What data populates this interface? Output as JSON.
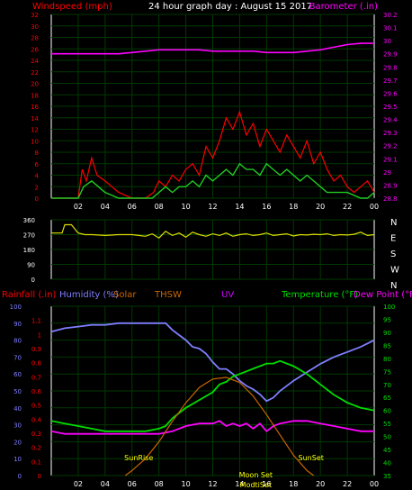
{
  "header": {
    "left_label": "Windspeed (mph)",
    "title": "24 hour graph day : August 15 2017",
    "right_label": "Barometer (.in)"
  },
  "colors": {
    "background": "#000000",
    "grid": "#003a00",
    "axis": "#ffffff",
    "wind": "#ff0000",
    "gust": "#22cc22",
    "barometer": "#ff00ff",
    "direction": "#dddd00",
    "humidity": "#7f7fff",
    "solar": "#cc6600",
    "temperature": "#00dd00",
    "dewpoint": "#ff00ff",
    "rain": "#ff0000",
    "sunline": "#ffff00"
  },
  "legend_row": {
    "rain": "Rainfall (.in)",
    "humidity": "Humidity (%)",
    "solar": "Solar",
    "thsw": "THSW",
    "uv": "UV",
    "temperature": "Temperature (°F)",
    "dewpoint": "Dew Point (°F)"
  },
  "annotations": {
    "sunrise": "SunRise",
    "sunset": "SunSet",
    "moonset": "Moon Set",
    "moonrise": "ModtiSet"
  },
  "chart_data": [
    {
      "type": "line",
      "name": "wind_and_barometer",
      "x_ticks": [
        "02",
        "04",
        "06",
        "08",
        "10",
        "12",
        "14",
        "16",
        "18",
        "20",
        "22",
        "00"
      ],
      "xlim": [
        0,
        24
      ],
      "y_left": {
        "label": "Windspeed (mph)",
        "ticks": [
          0,
          2,
          4,
          6,
          8,
          10,
          12,
          14,
          16,
          18,
          20,
          22,
          24,
          26,
          28,
          30,
          32
        ],
        "ylim": [
          0,
          32
        ]
      },
      "y_right": {
        "label": "Barometer (.in)",
        "ticks": [
          "28.8",
          "28.9",
          "29",
          "29.1",
          "29.2",
          "29.3",
          "29.4",
          "29.5",
          "29.6",
          "29.7",
          "29.8",
          "29.9",
          "30",
          "30.1",
          "30.2"
        ],
        "ylim": [
          28.8,
          30.2
        ]
      },
      "series": [
        {
          "name": "Barometer",
          "axis": "right",
          "x": [
            0,
            1,
            2,
            3,
            4,
            5,
            6,
            7,
            8,
            9,
            10,
            11,
            12,
            13,
            14,
            15,
            16,
            17,
            18,
            19,
            20,
            21,
            22,
            23,
            24
          ],
          "y": [
            29.9,
            29.9,
            29.9,
            29.9,
            29.9,
            29.9,
            29.91,
            29.92,
            29.93,
            29.93,
            29.93,
            29.93,
            29.92,
            29.92,
            29.92,
            29.92,
            29.91,
            29.91,
            29.91,
            29.92,
            29.93,
            29.95,
            29.97,
            29.98,
            29.98
          ]
        },
        {
          "name": "Wind Speed",
          "axis": "left",
          "x": [
            0,
            2,
            2.3,
            2.6,
            3,
            3.4,
            4,
            5,
            6,
            7,
            7.6,
            8,
            8.5,
            9,
            9.5,
            10,
            10.5,
            11,
            11.5,
            12,
            12.5,
            13,
            13.5,
            14,
            14.5,
            15,
            15.5,
            16,
            16.5,
            17,
            17.5,
            18,
            18.5,
            19,
            19.5,
            20,
            20.5,
            21,
            21.5,
            22,
            22.5,
            23,
            23.5,
            24
          ],
          "y": [
            0,
            0,
            5,
            3,
            7,
            4,
            3,
            1,
            0,
            0,
            1,
            3,
            2,
            4,
            3,
            5,
            6,
            4,
            9,
            7,
            10,
            14,
            12,
            15,
            11,
            13,
            9,
            12,
            10,
            8,
            11,
            9,
            7,
            10,
            6,
            8,
            5,
            3,
            4,
            2,
            1,
            2,
            3,
            1
          ]
        },
        {
          "name": "Wind Gust",
          "axis": "left",
          "x": [
            0,
            2,
            2.4,
            3,
            3.5,
            4,
            5,
            6,
            7,
            7.5,
            8,
            8.5,
            9,
            9.5,
            10,
            10.5,
            11,
            11.5,
            12,
            12.5,
            13,
            13.5,
            14,
            14.5,
            15,
            15.5,
            16,
            16.5,
            17,
            17.5,
            18,
            18.5,
            19,
            19.5,
            20,
            20.5,
            21,
            22,
            23,
            23.5,
            24
          ],
          "y": [
            0,
            0,
            2,
            3,
            2,
            1,
            0,
            0,
            0,
            0,
            1,
            2,
            1,
            2,
            2,
            3,
            2,
            4,
            3,
            4,
            5,
            4,
            6,
            5,
            5,
            4,
            6,
            5,
            4,
            5,
            4,
            3,
            4,
            3,
            2,
            1,
            1,
            1,
            0,
            0,
            1
          ]
        }
      ]
    },
    {
      "type": "line",
      "name": "wind_direction",
      "x_ticks": [
        "02",
        "04",
        "06",
        "08",
        "10",
        "12",
        "14",
        "16",
        "18",
        "20",
        "22",
        "00"
      ],
      "xlim": [
        0,
        24
      ],
      "y_left": {
        "ticks": [
          0,
          90,
          180,
          270,
          360
        ],
        "ylim": [
          0,
          360
        ]
      },
      "y_right": {
        "ticks": [
          "N",
          "W",
          "S",
          "E",
          "N"
        ]
      },
      "series": [
        {
          "name": "Wind Direction",
          "x": [
            0,
            0.8,
            1,
            1.5,
            2,
            2.5,
            3,
            4,
            5,
            6,
            6.5,
            7,
            7.5,
            8,
            8.5,
            9,
            9.5,
            10,
            10.5,
            11,
            11.5,
            12,
            12.5,
            13,
            13.5,
            14,
            14.5,
            15,
            15.5,
            16,
            16.5,
            17,
            17.5,
            18,
            18.5,
            19,
            19.5,
            20,
            20.5,
            21,
            21.5,
            22,
            22.5,
            23,
            23.5,
            24
          ],
          "y": [
            280,
            280,
            330,
            330,
            280,
            270,
            270,
            265,
            270,
            270,
            265,
            260,
            275,
            250,
            290,
            265,
            280,
            255,
            285,
            270,
            260,
            275,
            265,
            280,
            260,
            270,
            275,
            265,
            270,
            280,
            265,
            270,
            275,
            262,
            270,
            268,
            272,
            270,
            275,
            265,
            270,
            268,
            272,
            285,
            265,
            270
          ]
        }
      ]
    },
    {
      "type": "line",
      "name": "temperature_humidity",
      "x_ticks": [
        "02",
        "04",
        "06",
        "08",
        "10",
        "12",
        "14",
        "16",
        "18",
        "20",
        "22",
        "00"
      ],
      "xlim": [
        0,
        24
      ],
      "y_left": {
        "label": "Humidity (%)",
        "ticks": [
          0,
          10,
          20,
          30,
          40,
          50,
          60,
          70,
          80,
          90,
          100
        ],
        "ylim": [
          0,
          100
        ]
      },
      "y_rain": {
        "label": "Rainfall (.in)",
        "ticks": [
          "0",
          "0.1",
          "0.2",
          "0.3",
          "0.4",
          "0.5",
          "0.6",
          "0.7",
          "0.8",
          "0.9",
          "1",
          "1.1"
        ],
        "ylim": [
          0,
          1.2
        ]
      },
      "y_right": {
        "label": "Temperature (°F)",
        "ticks": [
          35,
          40,
          45,
          50,
          55,
          60,
          65,
          70,
          75,
          80,
          85,
          90,
          95,
          100
        ],
        "ylim": [
          35,
          100
        ]
      },
      "series": [
        {
          "name": "Humidity",
          "axis": "left",
          "x": [
            0,
            1,
            2,
            3,
            4,
            5,
            6,
            7,
            8,
            8.5,
            9,
            10,
            10.5,
            11,
            11.5,
            12,
            12.5,
            13,
            13.5,
            14,
            14.5,
            15,
            15.5,
            16,
            16.5,
            17,
            18,
            19,
            20,
            21,
            22,
            23,
            24
          ],
          "y": [
            85,
            87,
            88,
            89,
            89,
            90,
            90,
            90,
            90,
            90,
            86,
            80,
            76,
            75,
            72,
            67,
            63,
            63,
            60,
            56,
            53,
            51,
            48,
            44,
            46,
            50,
            56,
            61,
            66,
            70,
            73,
            76,
            80
          ]
        },
        {
          "name": "Temperature",
          "axis": "right",
          "x": [
            0,
            1,
            2,
            3,
            4,
            5,
            6,
            7,
            8,
            8.5,
            9,
            10,
            11,
            12,
            12.5,
            13,
            13.5,
            14,
            14.5,
            15,
            15.5,
            16,
            16.5,
            17,
            17.5,
            18,
            19,
            20,
            21,
            22,
            23,
            24
          ],
          "y": [
            56,
            55,
            54,
            53,
            52,
            52,
            52,
            52,
            53,
            54,
            57,
            61,
            64,
            67,
            70,
            71,
            73,
            74,
            75,
            76,
            77,
            78,
            78,
            79,
            78,
            77,
            74,
            70,
            66,
            63,
            61,
            60
          ]
        },
        {
          "name": "Dew Point",
          "axis": "right",
          "x": [
            0,
            1,
            2,
            3,
            4,
            5,
            6,
            7,
            8,
            9,
            10,
            11,
            12,
            12.5,
            13,
            13.5,
            14,
            14.5,
            15,
            15.5,
            16,
            16.5,
            17,
            18,
            19,
            20,
            21,
            22,
            23,
            24
          ],
          "y": [
            52,
            51,
            51,
            51,
            51,
            51,
            51,
            51,
            51,
            52,
            54,
            55,
            55,
            56,
            54,
            55,
            54,
            55,
            53,
            55,
            52,
            54,
            55,
            56,
            56,
            55,
            54,
            53,
            52,
            52
          ]
        },
        {
          "name": "Solar",
          "axis": "left",
          "x": [
            5.5,
            6,
            7,
            8,
            9,
            10,
            11,
            12,
            13,
            14,
            15,
            16,
            17,
            18,
            19,
            19.5
          ],
          "y": [
            0,
            3,
            10,
            20,
            32,
            43,
            52,
            57,
            58,
            55,
            47,
            36,
            24,
            12,
            3,
            0
          ]
        }
      ]
    }
  ]
}
